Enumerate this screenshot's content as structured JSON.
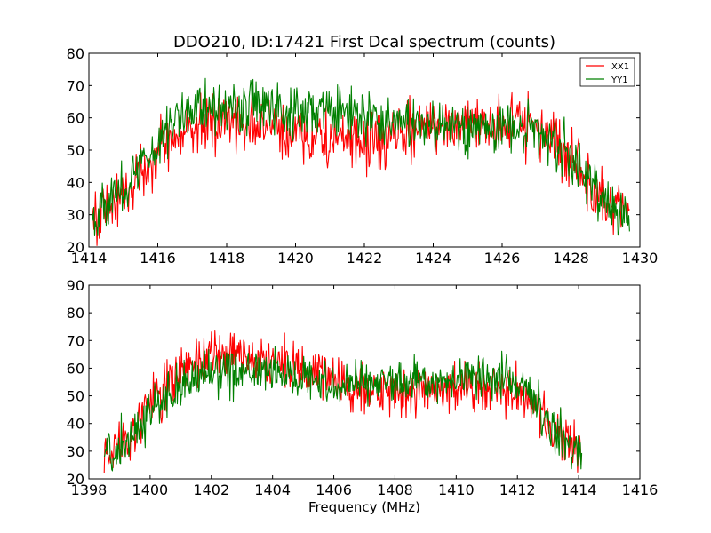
{
  "figure": {
    "background": "#ffffff"
  },
  "chart_data": [
    {
      "type": "line",
      "title": "DDO210, ID:17421 First Dcal spectrum (counts)",
      "xlabel": "",
      "ylabel": "",
      "xlim": [
        1414,
        1430
      ],
      "ylim": [
        20,
        80
      ],
      "xticks": [
        1414,
        1416,
        1418,
        1420,
        1422,
        1424,
        1426,
        1428,
        1430
      ],
      "yticks": [
        20,
        30,
        40,
        50,
        60,
        70,
        80
      ],
      "x_range": [
        1414.1,
        1429.7
      ],
      "legend": {
        "placement": "top-right",
        "entries": [
          "XX1",
          "YY1"
        ]
      },
      "series": [
        {
          "name": "XX1",
          "color": "#ff0000",
          "envelope_x": [
            1414.1,
            1415.0,
            1416.0,
            1417.0,
            1418.0,
            1419.0,
            1420.0,
            1421.0,
            1422.0,
            1423.0,
            1424.0,
            1425.0,
            1426.0,
            1427.0,
            1427.5,
            1428.0,
            1428.5,
            1429.0,
            1429.7
          ],
          "envelope_y": [
            29,
            36,
            50,
            57,
            59,
            58,
            55,
            53,
            52,
            54,
            58,
            59,
            58,
            57,
            54,
            47,
            40,
            33,
            29
          ],
          "noise": 4.5
        },
        {
          "name": "YY1",
          "color": "#008000",
          "envelope_x": [
            1414.1,
            1415.0,
            1416.0,
            1416.5,
            1417.0,
            1418.0,
            1419.0,
            1420.0,
            1421.0,
            1422.0,
            1423.0,
            1424.0,
            1425.0,
            1426.0,
            1427.0,
            1427.5,
            1428.0,
            1428.5,
            1429.0,
            1429.7
          ],
          "envelope_y": [
            30,
            38,
            52,
            60,
            63,
            64,
            63,
            63,
            62,
            60,
            59,
            57,
            57,
            57,
            56,
            53,
            47,
            41,
            34,
            29
          ],
          "noise": 4.0
        }
      ]
    },
    {
      "type": "line",
      "title": "",
      "xlabel": "Frequency (MHz)",
      "ylabel": "",
      "xlim": [
        1398,
        1416
      ],
      "ylim": [
        20,
        90
      ],
      "xticks": [
        1398,
        1400,
        1402,
        1404,
        1406,
        1408,
        1410,
        1412,
        1414,
        1416
      ],
      "yticks": [
        20,
        30,
        40,
        50,
        60,
        70,
        80,
        90
      ],
      "x_range": [
        1398.5,
        1414.1
      ],
      "series": [
        {
          "name": "",
          "color": "#ff0000",
          "envelope_x": [
            1398.5,
            1399.5,
            1400.0,
            1401.0,
            1402.0,
            1403.0,
            1404.0,
            1405.0,
            1406.0,
            1407.0,
            1408.0,
            1409.0,
            1410.0,
            1411.0,
            1412.0,
            1412.5,
            1413.0,
            1413.5,
            1414.1
          ],
          "envelope_y": [
            30,
            37,
            48,
            58,
            64,
            65,
            62,
            59,
            55,
            52,
            51,
            52,
            53,
            53,
            52,
            47,
            38,
            33,
            30
          ],
          "noise": 4.5
        },
        {
          "name": "",
          "color": "#008000",
          "envelope_x": [
            1398.5,
            1399.5,
            1400.0,
            1401.0,
            1402.0,
            1403.0,
            1404.0,
            1405.0,
            1406.0,
            1407.0,
            1408.0,
            1409.0,
            1410.0,
            1410.8,
            1411.5,
            1412.0,
            1412.5,
            1413.0,
            1413.5,
            1414.1
          ],
          "envelope_y": [
            29,
            36,
            45,
            53,
            58,
            59,
            58,
            57,
            55,
            55,
            55,
            55,
            56,
            58,
            57,
            54,
            49,
            41,
            34,
            29
          ],
          "noise": 4.0
        }
      ]
    }
  ]
}
